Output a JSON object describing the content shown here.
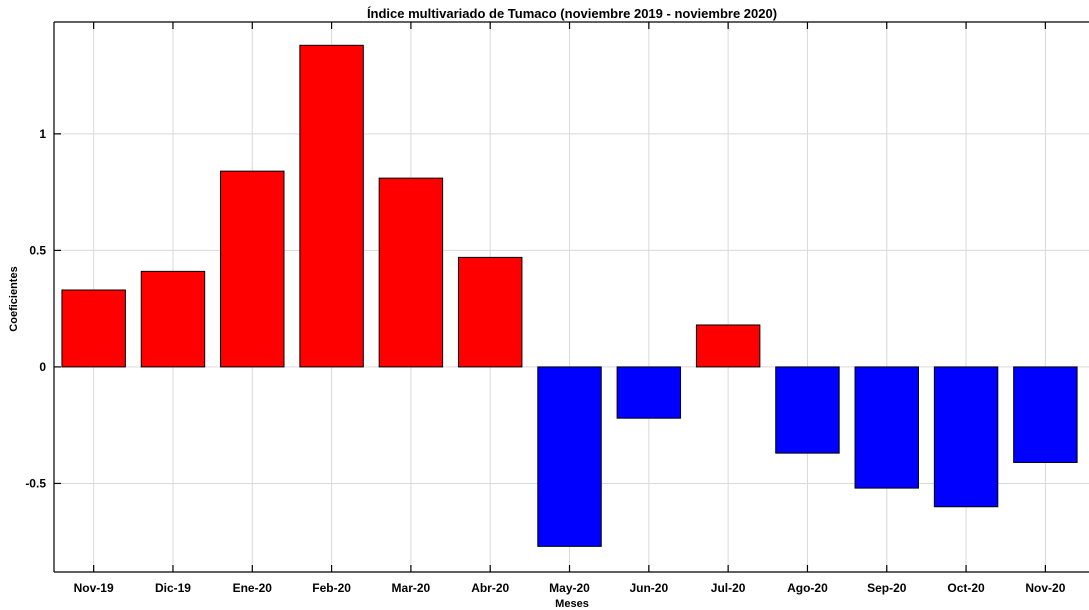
{
  "chart_data": {
    "type": "bar",
    "title": "Índice multivariado de Tumaco (noviembre 2019 - noviembre  2020)",
    "xlabel": "Meses",
    "ylabel": "Coeficientes",
    "categories": [
      "Nov-19",
      "Dic-19",
      "Ene-20",
      "Feb-20",
      "Mar-20",
      "Abr-20",
      "May-20",
      "Jun-20",
      "Jul-20",
      "Ago-20",
      "Sep-20",
      "Oct-20",
      "Nov-20"
    ],
    "values": [
      0.33,
      0.41,
      0.84,
      1.38,
      0.81,
      0.47,
      -0.77,
      -0.22,
      0.18,
      -0.37,
      -0.52,
      -0.6,
      -0.41
    ],
    "ylim": [
      -0.88,
      1.48
    ],
    "yticks": [
      -0.5,
      0,
      0.5,
      1
    ],
    "ytick_labels": [
      "-0.5",
      "0",
      "0.5",
      "1"
    ],
    "grid": true,
    "colors": {
      "positive": "#ff0000",
      "negative": "#0000ff",
      "edge": "#000000",
      "grid": "#d9d9d9"
    }
  }
}
